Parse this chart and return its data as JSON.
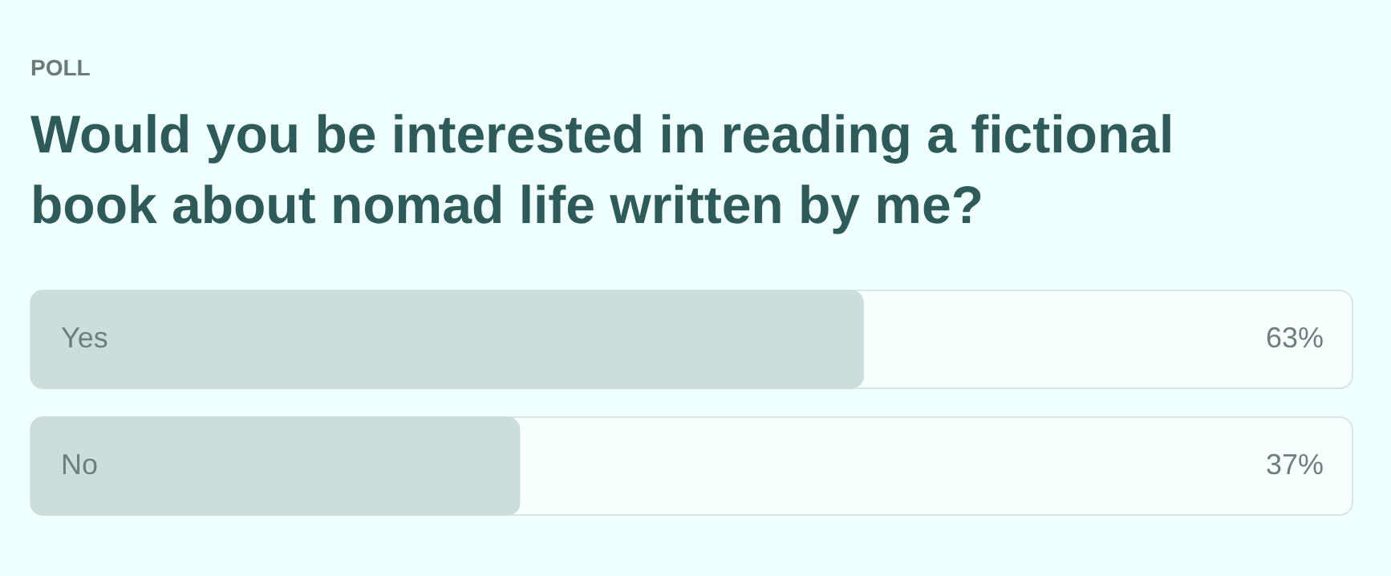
{
  "chart_data": {
    "type": "bar",
    "orientation": "horizontal",
    "subtitle": "POLL",
    "title": "Would you be interested in reading a fictional book about nomad life written by me?",
    "categories": [
      "Yes",
      "No"
    ],
    "values": [
      63,
      37
    ],
    "color": "#cddcdc",
    "value_labels": [
      "63%",
      "37%"
    ],
    "xlim": [
      0,
      100
    ]
  }
}
